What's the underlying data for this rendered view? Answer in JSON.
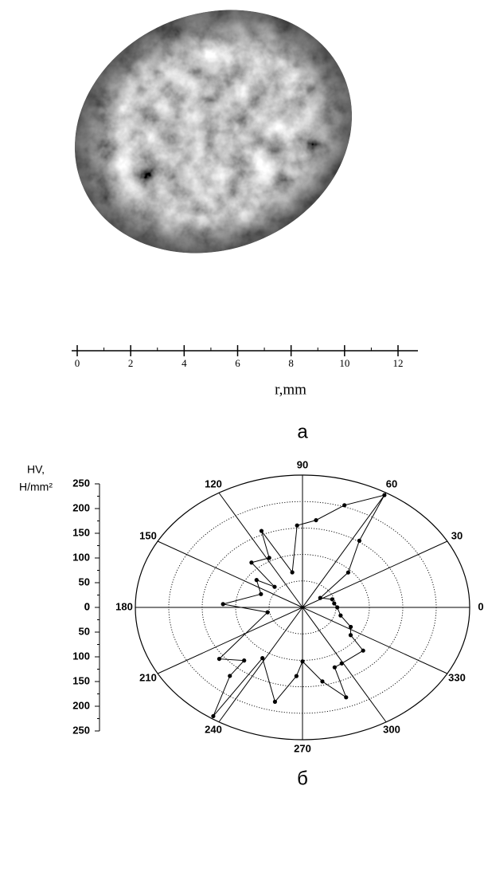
{
  "chart_data": [
    {
      "type": "axis",
      "xlabel": "r,mm",
      "xlim": [
        0,
        12
      ],
      "xticks": [
        0,
        2,
        4,
        6,
        8,
        10,
        12
      ],
      "caption": "а"
    },
    {
      "type": "polar",
      "ylabel": [
        "HV,",
        "H/mm²"
      ],
      "ylim": [
        0,
        250
      ],
      "yticks": [
        0,
        50,
        100,
        150,
        200,
        250
      ],
      "thetaticks": [
        0,
        30,
        60,
        90,
        120,
        150,
        180,
        210,
        240,
        270,
        300,
        330
      ],
      "theta": [
        0,
        9,
        19,
        34,
        44,
        56,
        60,
        72,
        83,
        93,
        103,
        113,
        118,
        132,
        137,
        143,
        158,
        177,
        190,
        218,
        229,
        230,
        237,
        238,
        257,
        266,
        270,
        282,
        291,
        293,
        299,
        318,
        324,
        333,
        345
      ],
      "r": [
        52,
        48,
        47,
        32,
        95,
        152,
        245,
        203,
        166,
        155,
        68,
        157,
        106,
        114,
        57,
        86,
        67,
        119,
        53,
        158,
        133,
        169,
        245,
        113,
        183,
        130,
        102,
        143,
        182,
        123,
        121,
        122,
        89,
        81,
        59
      ],
      "color": "#000000",
      "caption": "б"
    }
  ]
}
